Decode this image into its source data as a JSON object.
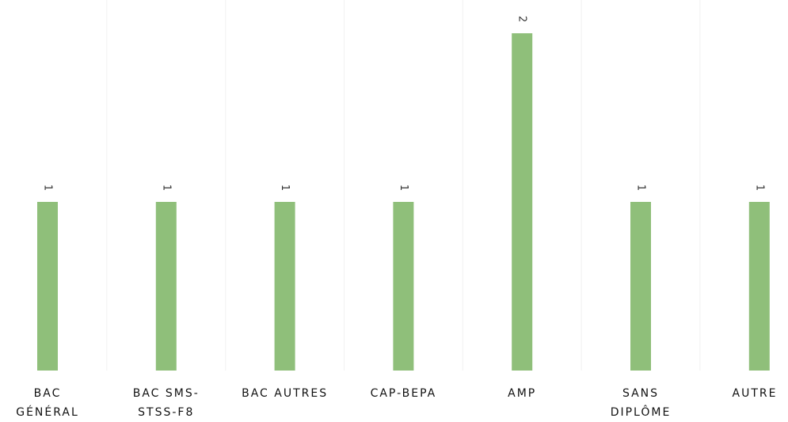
{
  "chart_data": {
    "type": "bar",
    "categories": [
      [
        "BAC",
        "GÉNÉRAL"
      ],
      [
        "BAC SMS-",
        "STSS-F8"
      ],
      [
        "BAC AUTRES"
      ],
      [
        "CAP-BEPA"
      ],
      [
        "AMP"
      ],
      [
        "SANS",
        "DIPLÔME"
      ],
      [
        "AUTRE"
      ]
    ],
    "values": [
      1,
      1,
      1,
      1,
      2,
      1,
      1
    ],
    "data_labels": [
      "1",
      "1",
      "1",
      "1",
      "2",
      "1",
      "1"
    ],
    "ylim": [
      0,
      2
    ],
    "grid": true,
    "legend": "none",
    "colors": {
      "bar": "#8fbf7a",
      "grid": "#f1f1f1",
      "text": "#111111"
    }
  }
}
